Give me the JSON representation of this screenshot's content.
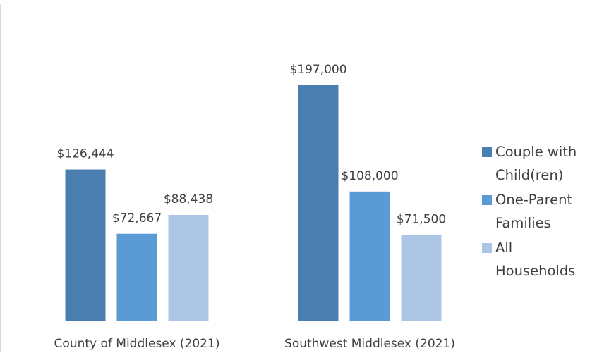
{
  "chart_data": {
    "type": "bar",
    "categories": [
      "County of Middlesex (2021)",
      "Southwest Middlesex (2021)"
    ],
    "series": [
      {
        "name": "Couple with Child(ren)",
        "color": "#4a7eb0",
        "values": [
          126444,
          197000
        ],
        "value_labels": [
          "$126,444",
          "$197,000"
        ]
      },
      {
        "name": "One-Parent Families",
        "color": "#5b9bd5",
        "values": [
          72667,
          108000
        ],
        "value_labels": [
          "$72,667",
          "$108,000"
        ]
      },
      {
        "name": "All Households",
        "color": "#aec6e5",
        "values": [
          88438,
          71500
        ],
        "value_labels": [
          "$88,438",
          "$71,500"
        ]
      }
    ],
    "ylim": [
      0,
      250000
    ],
    "legend": "right"
  }
}
